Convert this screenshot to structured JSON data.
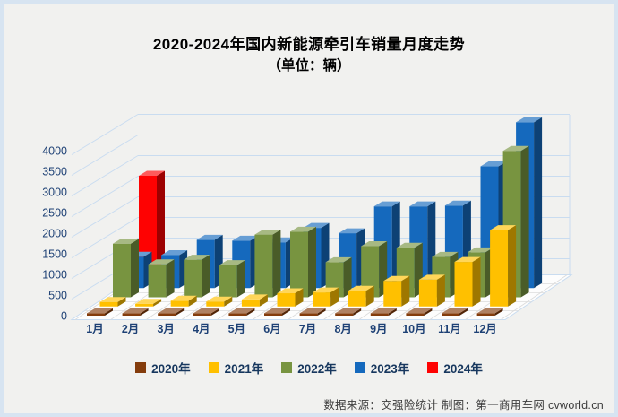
{
  "title": {
    "line1": "2020-2024年国内新能源牵引车销量月度走势",
    "line2": "（单位：辆）"
  },
  "source_note": "数据来源：交强险统计 制图：第一商用车网 cvworld.cn",
  "colors": {
    "background": "#F1F1EF",
    "frame": "#D7E4F1",
    "grid": "#C9DCF0",
    "axis_text": "#1E4175",
    "legend_text": "#17375E",
    "source_text": "#3C3C3C",
    "title_text": "#000000",
    "floor": "#FDFDFD",
    "floor_grid": "#DBDBDB"
  },
  "chart_data": {
    "type": "bar",
    "projection": "3d",
    "title": "2020-2024年国内新能源牵引车销量月度走势（单位：辆）",
    "categories": [
      "1月",
      "2月",
      "3月",
      "4月",
      "5月",
      "6月",
      "7月",
      "8月",
      "9月",
      "10月",
      "11月",
      "12月"
    ],
    "series": [
      {
        "name": "2020年",
        "color": "#843C0C",
        "values": [
          15,
          5,
          18,
          20,
          22,
          25,
          28,
          32,
          36,
          40,
          45,
          52
        ]
      },
      {
        "name": "2021年",
        "color": "#FFC000",
        "values": [
          110,
          65,
          140,
          120,
          170,
          320,
          340,
          380,
          620,
          650,
          1080,
          1850
        ]
      },
      {
        "name": "2022年",
        "color": "#789440",
        "values": [
          1300,
          800,
          910,
          780,
          1520,
          1590,
          850,
          1240,
          1200,
          980,
          1090,
          3550
        ]
      },
      {
        "name": "2023年",
        "color": "#1569BD",
        "values": [
          760,
          800,
          1170,
          1150,
          1110,
          1460,
          1330,
          1980,
          1980,
          2000,
          2950,
          4020
        ]
      },
      {
        "name": "2024年",
        "color": "#FE0202",
        "values": [
          2500,
          null,
          null,
          null,
          null,
          null,
          null,
          null,
          null,
          null,
          null,
          null
        ]
      }
    ],
    "ylim": [
      0,
      4500
    ],
    "yticks": [
      0,
      500,
      1000,
      1500,
      2000,
      2500,
      3000,
      3500,
      4000
    ],
    "legend_position": "bottom",
    "grid": true
  }
}
